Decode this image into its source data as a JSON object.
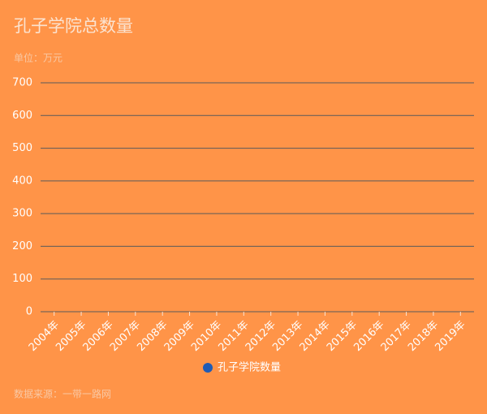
{
  "chart_data": {
    "type": "bar",
    "title": "孔子学院总数量",
    "subtitle": "单位：万元",
    "source": "数据来源：一带一路网",
    "categories": [
      "2004年",
      "2005年",
      "2006年",
      "2007年",
      "2008年",
      "2009年",
      "2010年",
      "2011年",
      "2012年",
      "2013年",
      "2014年",
      "2015年",
      "2016年",
      "2017年",
      "2018年",
      "2019年"
    ],
    "series": [
      {
        "name": "孔子学院数量",
        "color": "#1f5bb5",
        "values": [
          null,
          null,
          null,
          null,
          null,
          null,
          null,
          null,
          null,
          null,
          null,
          null,
          null,
          null,
          null,
          null
        ]
      }
    ],
    "ylim": [
      0,
      700
    ],
    "yticks": [
      0,
      100,
      200,
      300,
      400,
      500,
      600,
      700
    ],
    "grid": true
  }
}
